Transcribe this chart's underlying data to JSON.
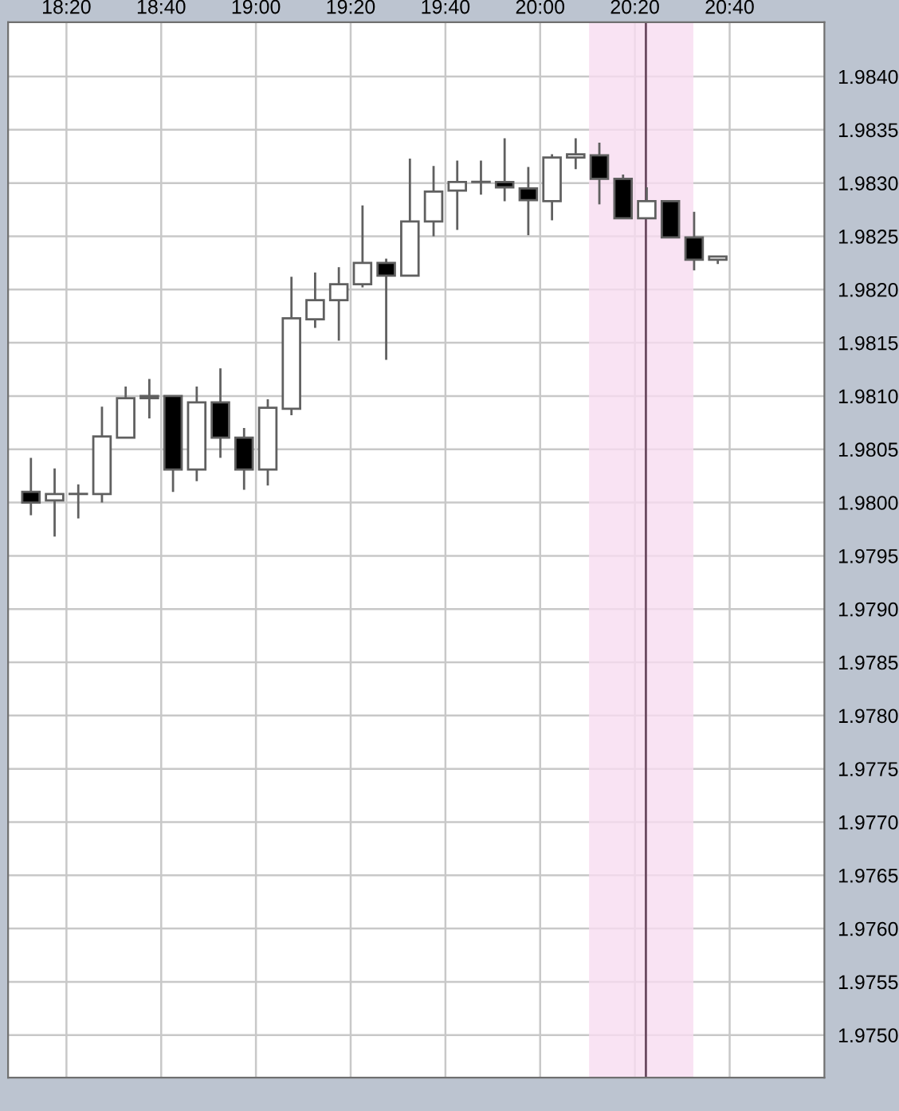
{
  "chart_data": {
    "type": "candlestick",
    "x": [
      18.2083,
      18.2917,
      18.375,
      18.4583,
      18.5417,
      18.625,
      18.7083,
      18.7917,
      18.875,
      18.9583,
      19.0417,
      19.125,
      19.2083,
      19.2917,
      19.375,
      19.4583,
      19.5417,
      19.625,
      19.7083,
      19.7917,
      19.875,
      19.9583,
      20.0417,
      20.125,
      20.2083,
      20.2917,
      20.375,
      20.4583,
      20.5417,
      20.625
    ],
    "ohlc": [
      [
        1.9801,
        1.98042,
        1.97988,
        1.98
      ],
      [
        1.98002,
        1.98032,
        1.97968,
        1.98008
      ],
      [
        1.98008,
        1.98017,
        1.97985,
        1.98008
      ],
      [
        1.98008,
        1.9809,
        1.98,
        1.98062
      ],
      [
        1.98061,
        1.98109,
        1.98061,
        1.98098
      ],
      [
        1.98098,
        1.98116,
        1.98079,
        1.981
      ],
      [
        1.981,
        1.981,
        1.9801,
        1.98031
      ],
      [
        1.98031,
        1.98109,
        1.9802,
        1.98094
      ],
      [
        1.98094,
        1.98126,
        1.98042,
        1.98061
      ],
      [
        1.98061,
        1.9807,
        1.98012,
        1.98031
      ],
      [
        1.98031,
        1.98097,
        1.98016,
        1.98089
      ],
      [
        1.98088,
        1.98212,
        1.98082,
        1.98173
      ],
      [
        1.98172,
        1.98216,
        1.98164,
        1.9819
      ],
      [
        1.9819,
        1.98221,
        1.98152,
        1.98205
      ],
      [
        1.98205,
        1.98279,
        1.98202,
        1.98225
      ],
      [
        1.98225,
        1.98229,
        1.98134,
        1.98213
      ],
      [
        1.98213,
        1.98323,
        1.98213,
        1.98264
      ],
      [
        1.98264,
        1.98316,
        1.9825,
        1.98292
      ],
      [
        1.98293,
        1.98321,
        1.98256,
        1.98301
      ],
      [
        1.98301,
        1.98321,
        1.98289,
        1.98301
      ],
      [
        1.98301,
        1.98342,
        1.98283,
        1.98296
      ],
      [
        1.98295,
        1.98315,
        1.98251,
        1.98284
      ],
      [
        1.98283,
        1.98327,
        1.98265,
        1.98324
      ],
      [
        1.98324,
        1.98342,
        1.98313,
        1.98327
      ],
      [
        1.98326,
        1.98338,
        1.9828,
        1.98304
      ],
      [
        1.98304,
        1.98308,
        1.98267,
        1.98267
      ],
      [
        1.98267,
        1.98296,
        1.98267,
        1.98283
      ],
      [
        1.98283,
        1.98283,
        1.98249,
        1.98249
      ],
      [
        1.98249,
        1.98273,
        1.98218,
        1.98228
      ],
      [
        1.98228,
        1.98231,
        1.98224,
        1.98231
      ]
    ],
    "colors": [
      "#000000",
      "#ffffff",
      "#ffffff",
      "#ffffff",
      "#ffffff",
      "#ffffff",
      "#000000",
      "#ffffff",
      "#000000",
      "#000000",
      "#ffffff",
      "#ffffff",
      "#ffffff",
      "#ffffff",
      "#ffffff",
      "#000000",
      "#ffffff",
      "#ffffff",
      "#ffffff",
      "#ffffff",
      "#000000",
      "#000000",
      "#ffffff",
      "#ffffff",
      "#000000",
      "#000000",
      "#ffffff",
      "#000000",
      "#000000",
      "#ffffff"
    ],
    "xlim": [
      18.128,
      21.0
    ],
    "xticks": [
      {
        "value": 18.3333,
        "label": "18:20"
      },
      {
        "value": 18.6667,
        "label": "18:40"
      },
      {
        "value": 19.0,
        "label": "19:00"
      },
      {
        "value": 19.3333,
        "label": "19:20"
      },
      {
        "value": 19.6667,
        "label": "19:40"
      },
      {
        "value": 20.0,
        "label": "20:00"
      },
      {
        "value": 20.3333,
        "label": "20:20"
      },
      {
        "value": 20.6667,
        "label": "20:40"
      }
    ],
    "ylim": [
      1.9746,
      1.98451
    ],
    "yticks": [
      {
        "value": 1.975,
        "label": "1.9750"
      },
      {
        "value": 1.9755,
        "label": "1.9755"
      },
      {
        "value": 1.976,
        "label": "1.9760"
      },
      {
        "value": 1.9765,
        "label": "1.9765"
      },
      {
        "value": 1.977,
        "label": "1.9770"
      },
      {
        "value": 1.9775,
        "label": "1.9775"
      },
      {
        "value": 1.978,
        "label": "1.9780"
      },
      {
        "value": 1.9785,
        "label": "1.9785"
      },
      {
        "value": 1.979,
        "label": "1.9790"
      },
      {
        "value": 1.9795,
        "label": "1.9795"
      },
      {
        "value": 1.98,
        "label": "1.9800"
      },
      {
        "value": 1.9805,
        "label": "1.9805"
      },
      {
        "value": 1.981,
        "label": "1.9810"
      },
      {
        "value": 1.9815,
        "label": "1.9815"
      },
      {
        "value": 1.982,
        "label": "1.9820"
      },
      {
        "value": 1.9825,
        "label": "1.9825"
      },
      {
        "value": 1.983,
        "label": "1.9830"
      },
      {
        "value": 1.9835,
        "label": "1.9835"
      },
      {
        "value": 1.984,
        "label": "1.9840"
      }
    ],
    "bands": [
      {
        "axis": "x",
        "from": 20.172,
        "to": 20.539,
        "color": "#f7dcf0"
      }
    ],
    "ref_lines": [
      {
        "axis": "x",
        "value": 20.372,
        "color": "#6b4a60"
      }
    ],
    "grid": true
  }
}
